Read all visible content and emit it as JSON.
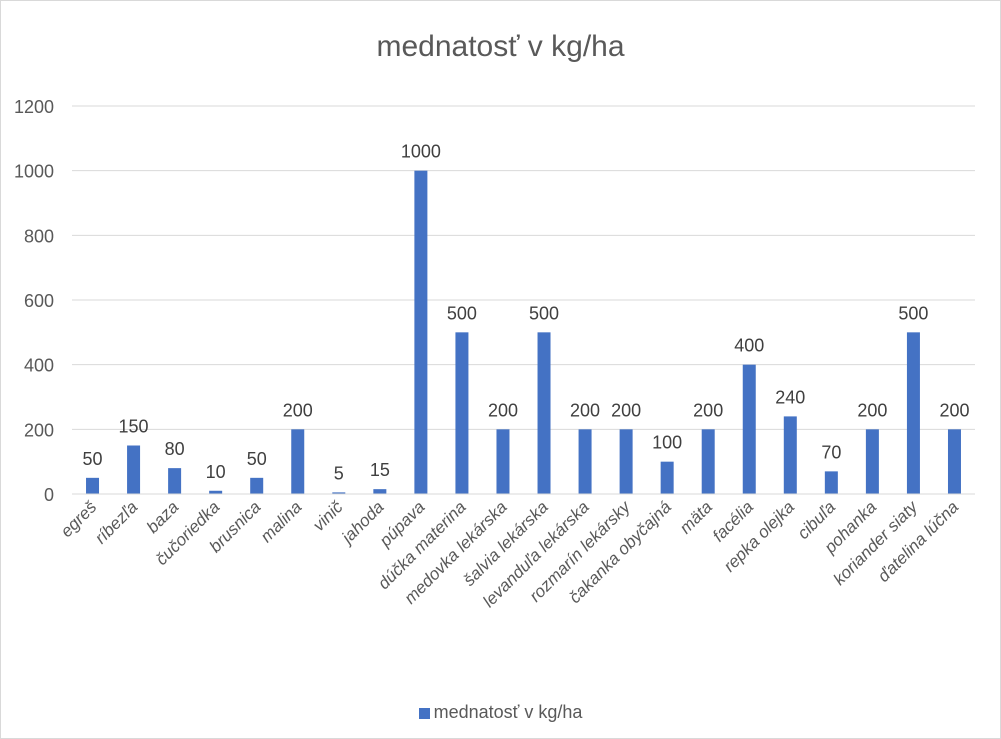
{
  "chart_data": {
    "type": "bar",
    "title": "mednatosť v  kg/ha",
    "categories": [
      "egreš",
      "ríbezľa",
      "baza",
      "čučoriedka",
      "brusnica",
      "malina",
      "vinič",
      "jahoda",
      "púpava",
      "dúčka materina",
      "medovka lekárska",
      "šalvia lekárska",
      "levanduľa lekárska",
      "rozmarín lekársky",
      "čakanka obyčajná",
      "mäta",
      "facélia",
      "repka olejka",
      "cibuľa",
      "pohanka",
      "koriander siaty",
      "ďatelina lúčna"
    ],
    "series": [
      {
        "name": "mednatosť v  kg/ha",
        "values": [
          50,
          150,
          80,
          10,
          50,
          200,
          5,
          15,
          1000,
          500,
          200,
          500,
          200,
          200,
          100,
          200,
          400,
          240,
          70,
          200,
          500,
          200
        ]
      }
    ],
    "ylim": [
      0,
      1200
    ],
    "yticks": [
      0,
      200,
      400,
      600,
      800,
      1000,
      1200
    ],
    "grid": true,
    "legend_position": "bottom",
    "color": "#4472c4"
  }
}
